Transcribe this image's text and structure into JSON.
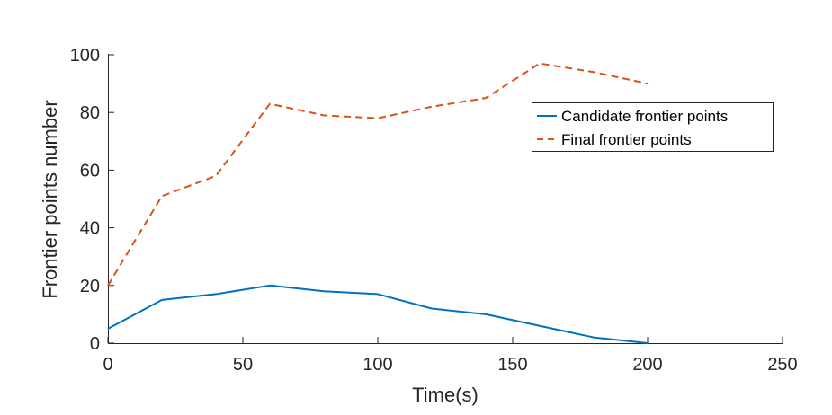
{
  "chart_data": {
    "type": "line",
    "title": "",
    "xlabel": "Time(s)",
    "ylabel": "Frontier points number",
    "xlim": [
      0,
      250
    ],
    "ylim": [
      0,
      100
    ],
    "xticks": [
      0,
      50,
      100,
      150,
      200,
      250
    ],
    "yticks": [
      0,
      20,
      40,
      60,
      80,
      100
    ],
    "grid": false,
    "legend_position": "top-right",
    "series": [
      {
        "name": "Candidate frontier points",
        "color": "#0072BD",
        "line_style": "solid",
        "x": [
          0,
          20,
          40,
          60,
          80,
          100,
          120,
          140,
          160,
          180,
          200
        ],
        "y": [
          5,
          15,
          17,
          20,
          18,
          17,
          12,
          10,
          6,
          2,
          0
        ]
      },
      {
        "name": "Final frontier points",
        "color": "#D95319",
        "line_style": "dashed",
        "x": [
          0,
          20,
          40,
          60,
          80,
          100,
          120,
          140,
          160,
          180,
          200
        ],
        "y": [
          20,
          51,
          58,
          83,
          79,
          78,
          82,
          85,
          97,
          94,
          90
        ]
      }
    ]
  }
}
